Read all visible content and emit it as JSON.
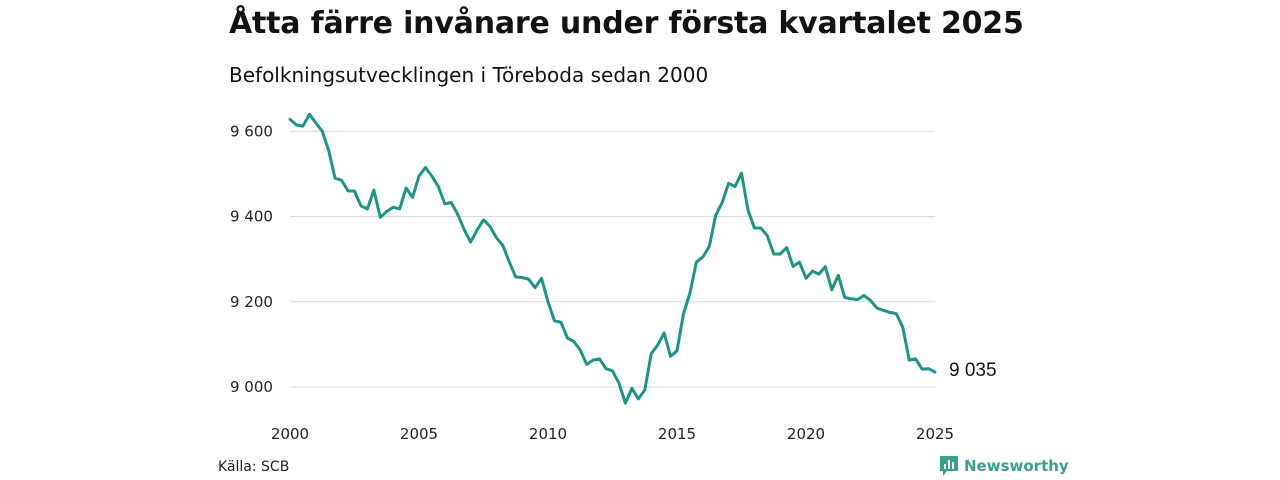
{
  "title": "Åtta färre invånare under första kvartalet 2025",
  "subtitle": "Befolkningsutvecklingen i Töreboda sedan 2000",
  "source": "Källa: SCB",
  "brand": {
    "name": "Newsworthy",
    "color": "#3a9e8e"
  },
  "end_label": "9 035",
  "chart_data": {
    "type": "line",
    "title": "Åtta färre invånare under första kvartalet 2025",
    "subtitle": "Befolkningsutvecklingen i Töreboda sedan 2000",
    "xlabel": "",
    "ylabel": "",
    "x_ticks": [
      {
        "value": 2000,
        "label": "2000"
      },
      {
        "value": 2005,
        "label": "2005"
      },
      {
        "value": 2010,
        "label": "2010"
      },
      {
        "value": 2015,
        "label": "2015"
      },
      {
        "value": 2020,
        "label": "2020"
      },
      {
        "value": 2025,
        "label": "2025"
      }
    ],
    "y_ticks": [
      {
        "value": 9000,
        "label": "9 000"
      },
      {
        "value": 9200,
        "label": "9 200"
      },
      {
        "value": 9400,
        "label": "9 400"
      },
      {
        "value": 9600,
        "label": "9 600"
      }
    ],
    "xlim": [
      2000,
      2025
    ],
    "ylim": [
      8946,
      9650
    ],
    "grid": "horizontal",
    "color": "#1f9485",
    "series": [
      {
        "values": [
          9628,
          9615,
          9612,
          9640,
          9620,
          9600,
          9555,
          9490,
          9485,
          9460,
          9460,
          9425,
          9418,
          9462,
          9398,
          9412,
          9422,
          9418,
          9467,
          9445,
          9495,
          9515,
          9495,
          9470,
          9430,
          9433,
          9405,
          9370,
          9340,
          9368,
          9392,
          9377,
          9350,
          9332,
          9293,
          9258,
          9257,
          9253,
          9233,
          9255,
          9200,
          9155,
          9152,
          9115,
          9107,
          9086,
          9053,
          9063,
          9066,
          9043,
          9038,
          9009,
          8962,
          8997,
          8972,
          8993,
          9078,
          9098,
          9127,
          9072,
          9085,
          9172,
          9220,
          9293,
          9305,
          9330,
          9403,
          9433,
          9478,
          9470,
          9502,
          9415,
          9373,
          9373,
          9355,
          9312,
          9312,
          9327,
          9283,
          9293,
          9255,
          9272,
          9265,
          9282,
          9228,
          9262,
          9210,
          9207,
          9205,
          9215,
          9203,
          9185,
          9180,
          9175,
          9172,
          9140,
          9063,
          9066,
          9042,
          9043,
          9035
        ]
      }
    ]
  }
}
